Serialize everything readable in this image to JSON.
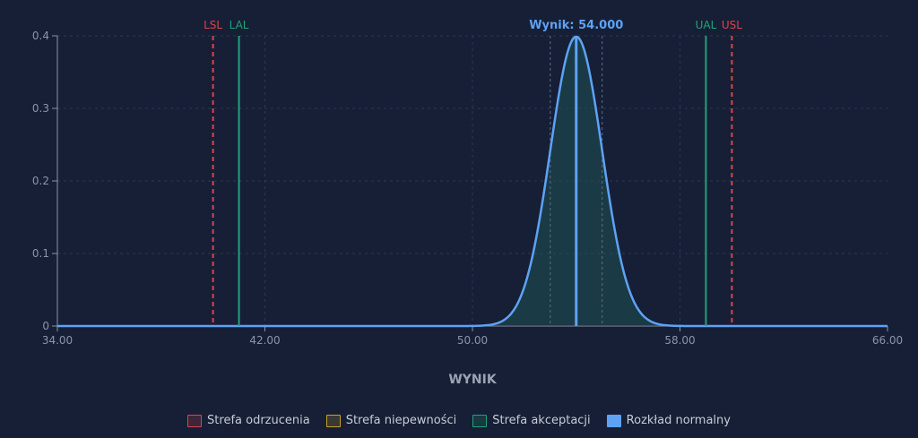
{
  "chart_data": {
    "type": "area",
    "xlabel": "WYNIK",
    "ylabel": "",
    "xlim": [
      34,
      66
    ],
    "ylim": [
      0,
      0.4
    ],
    "x_ticks": [
      "34.00",
      "42.00",
      "50.00",
      "58.00",
      "66.00"
    ],
    "y_ticks": [
      "0",
      "0.1",
      "0.2",
      "0.3",
      "0.4"
    ],
    "grid": true,
    "legend_position": "bottom",
    "distribution": {
      "mean": 54.0,
      "sd": 1.0
    },
    "sigma_lines": [
      53.0,
      55.0
    ],
    "result": {
      "label": "Wynik: 54.000",
      "value": 54.0
    },
    "limits": [
      {
        "label": "LSL",
        "value": 40.0,
        "kind": "spec"
      },
      {
        "label": "LAL",
        "value": 41.0,
        "kind": "acceptance"
      },
      {
        "label": "UAL",
        "value": 59.0,
        "kind": "acceptance"
      },
      {
        "label": "USL",
        "value": 60.0,
        "kind": "spec"
      }
    ],
    "legend": [
      {
        "label": "Strefa odrzucenia",
        "color": "#e0414d"
      },
      {
        "label": "Strefa niepewności",
        "color": "#c9a227"
      },
      {
        "label": "Strefa akceptacji",
        "color": "#1fa37a"
      },
      {
        "label": "Rozkład normalny",
        "color": "#5ea2f5"
      }
    ]
  }
}
